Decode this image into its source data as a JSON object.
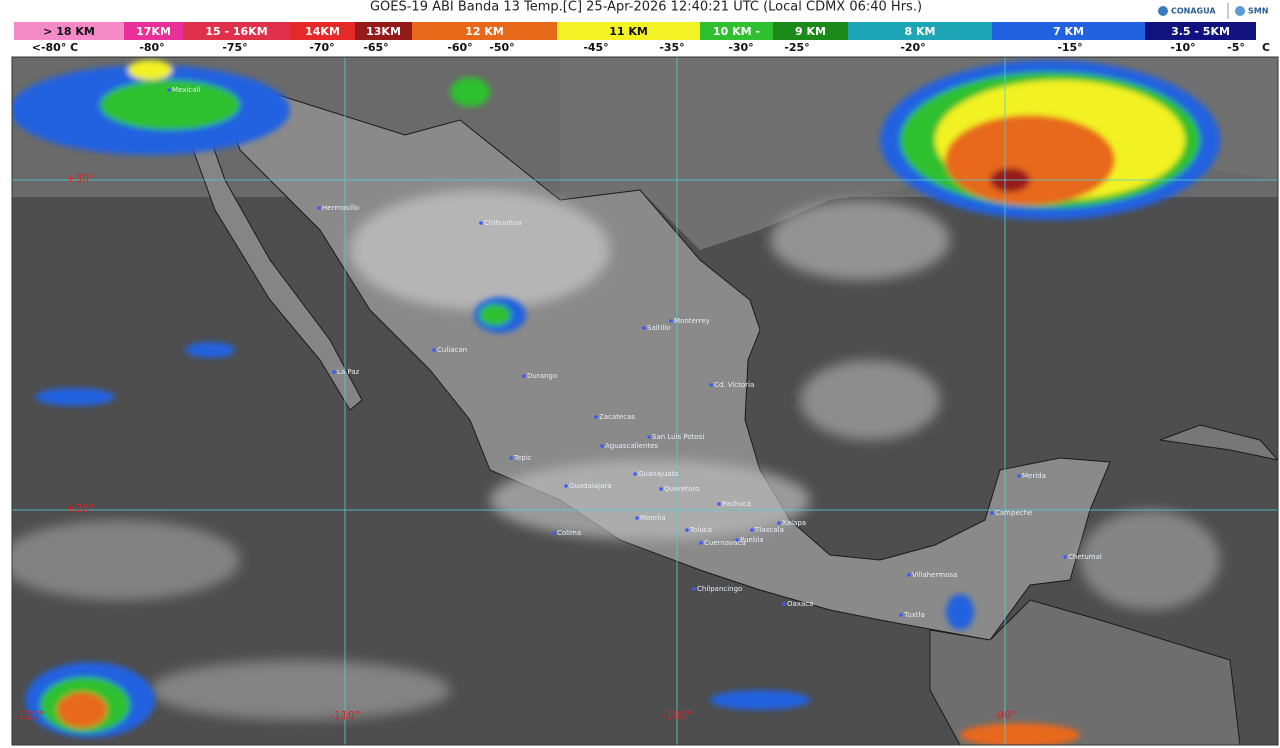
{
  "title": "GOES-19 ABI Banda 13 Temp.[C] 25-Apr-2026 12:40:21 UTC (Local CDMX  06:40 Hrs.)",
  "logos": [
    "CONAGUA",
    "SMN"
  ],
  "legend": {
    "bands": [
      {
        "label": "> 18 KM",
        "color": "#f58ac8"
      },
      {
        "label": "17KM",
        "color": "#e8309a"
      },
      {
        "label": "15 - 16KM",
        "color": "#e0304a"
      },
      {
        "label": "14KM",
        "color": "#e62a2a"
      },
      {
        "label": "13KM",
        "color": "#951a1a"
      },
      {
        "label": "12 KM",
        "color": "#e8681a"
      },
      {
        "label": "11 KM",
        "color": "#f2f224"
      },
      {
        "label": "10 KM -",
        "color": "#2ec02e"
      },
      {
        "label": "9 KM",
        "color": "#1b8a1b"
      },
      {
        "label": "8 KM",
        "color": "#1ea6b6"
      },
      {
        "label": "7 KM",
        "color": "#2262e0"
      },
      {
        "label": "3.5 - 5KM",
        "color": "#12127e"
      }
    ],
    "temps": [
      "<-80° C",
      "-80°",
      "-75°",
      "-70°",
      "-65°",
      "-60°",
      "-50°",
      "-45°",
      "-35°",
      "-30°",
      "-25°",
      "-20°",
      "-15°",
      "-10°",
      "-5°",
      "C"
    ]
  },
  "map": {
    "lat_labels": [
      "+30°",
      "+20°"
    ],
    "lon_labels": [
      "-120°",
      "-110°",
      "-100°",
      "-90°"
    ],
    "cities": [
      "Mexicali",
      "Hermosillo",
      "Chihuahua",
      "Culiacan",
      "La Paz",
      "Durango",
      "Saltillo",
      "Monterrey",
      "Cd. Victoria",
      "Zacatecas",
      "San Luis Potosi",
      "Aguascalientes",
      "Tepic",
      "Guanajuato",
      "Guadalajara",
      "Queretaro",
      "Pachuca",
      "Morelia",
      "Colima",
      "Toluca",
      "Tlaxcala",
      "Puebla",
      "Cuernavaca",
      "Xalapa",
      "Chilpancingo",
      "Oaxaca",
      "Tuxtla",
      "Villahermosa",
      "Campeche",
      "Merida",
      "Chetumal"
    ]
  }
}
